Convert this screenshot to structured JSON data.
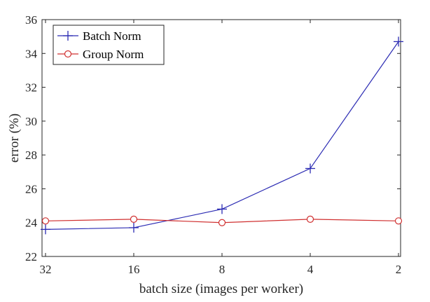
{
  "chart_data": {
    "type": "line",
    "categories": [
      "32",
      "16",
      "8",
      "4",
      "2"
    ],
    "xlabel": "batch size (images per worker)",
    "ylabel": "error (%)",
    "ylim": [
      22,
      36
    ],
    "yticks": [
      22,
      24,
      26,
      28,
      30,
      32,
      34,
      36
    ],
    "grid": false,
    "legend_position": "top-left",
    "series": [
      {
        "name": "Batch Norm",
        "values": [
          23.6,
          23.7,
          24.8,
          27.2,
          34.7
        ],
        "color": "#2b2bb3",
        "marker": "plus"
      },
      {
        "name": "Group Norm",
        "values": [
          24.1,
          24.2,
          24.0,
          24.2,
          24.1
        ],
        "color": "#d03030",
        "marker": "circle"
      }
    ]
  }
}
